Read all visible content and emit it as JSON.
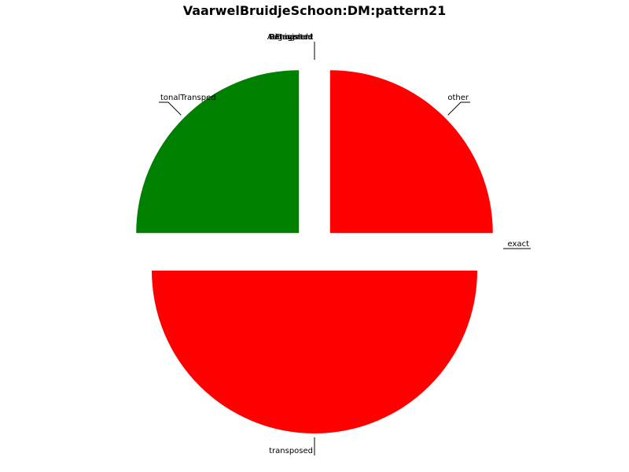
{
  "chart_data": {
    "type": "pie",
    "title": "VaarwelBruidjeSchoon:DM:pattern21",
    "slices": [
      {
        "label": "other",
        "value": 25,
        "color": "#ff0000"
      },
      {
        "label": "exact",
        "value": 0,
        "color": "#ff0000"
      },
      {
        "label": "transposed",
        "value": 50,
        "color": "#ff0000"
      },
      {
        "label": "tonalTransped",
        "value": 25,
        "color": "#008000"
      },
      {
        "label": "ttFragment",
        "value": 0,
        "color": "#008000"
      },
      {
        "label": "Retrograde",
        "value": 0,
        "color": "#008000"
      },
      {
        "label": "Inverted",
        "value": 0,
        "color": "#008000"
      },
      {
        "label": "Augmented",
        "value": 0,
        "color": "#008000"
      },
      {
        "label": "Diminished",
        "value": 0,
        "color": "#008000"
      },
      {
        "label": "Fragment",
        "value": 0,
        "color": "#008000"
      }
    ],
    "start_angle": 90,
    "direction": "clockwise",
    "exploded": true
  }
}
